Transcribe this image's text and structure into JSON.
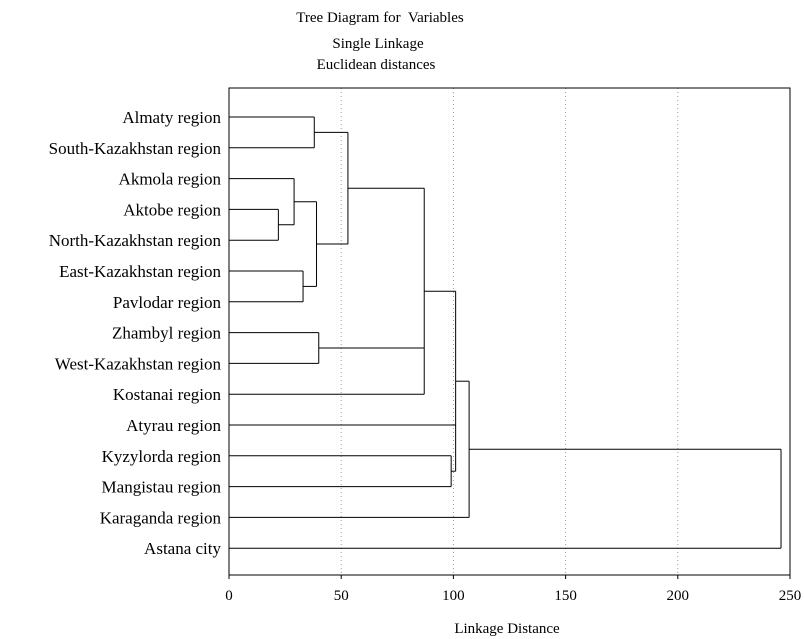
{
  "chart_data": {
    "type": "dendrogram",
    "title": "Tree Diagram for  Variables",
    "subtitle_1": "Single Linkage",
    "subtitle_2": "Euclidean distances",
    "xlabel": "Linkage Distance",
    "xlim": [
      0,
      250
    ],
    "xticks": [
      0,
      50,
      100,
      150,
      200,
      250
    ],
    "xtick_labels": [
      "0",
      "50",
      "100",
      "150",
      "200",
      "250"
    ],
    "grid": "vertical dotted at 50, 100, 150, 200",
    "leaves": [
      "Almaty region",
      "South-Kazakhstan region",
      "Akmola region",
      "Aktobe region",
      "North-Kazakhstan region",
      "East-Kazakhstan region",
      "Pavlodar region",
      "Zhambyl region",
      "West-Kazakhstan region",
      "Kostanai region",
      "Atyrau region",
      "Kyzylorda region",
      "Mangistau region",
      "Karaganda region",
      "Astana city"
    ],
    "merges": [
      {
        "id": "c1",
        "children": [
          "Aktobe region",
          "North-Kazakhstan region"
        ],
        "distance": 22
      },
      {
        "id": "c2",
        "children": [
          "Akmola region",
          "c1"
        ],
        "distance": 29
      },
      {
        "id": "c3",
        "children": [
          "East-Kazakhstan region",
          "Pavlodar region"
        ],
        "distance": 33
      },
      {
        "id": "c4",
        "children": [
          "c2",
          "c3"
        ],
        "distance": 39
      },
      {
        "id": "c5",
        "children": [
          "Almaty region",
          "South-Kazakhstan region"
        ],
        "distance": 38
      },
      {
        "id": "c6",
        "children": [
          "c5",
          "c4"
        ],
        "distance": 53
      },
      {
        "id": "c7",
        "children": [
          "Zhambyl region",
          "West-Kazakhstan region"
        ],
        "distance": 40
      },
      {
        "id": "c8",
        "children": [
          "c6",
          "c7",
          "Kostanai region"
        ],
        "distance": 87
      },
      {
        "id": "c9",
        "children": [
          "Kyzylorda region",
          "Mangistau region"
        ],
        "distance": 99
      },
      {
        "id": "c10",
        "children": [
          "c8",
          "Atyrau region",
          "c9"
        ],
        "distance": 101
      },
      {
        "id": "c11",
        "children": [
          "c10",
          "Karaganda region"
        ],
        "distance": 107
      },
      {
        "id": "c12",
        "children": [
          "c11",
          "Astana city"
        ],
        "distance": 246
      }
    ]
  }
}
